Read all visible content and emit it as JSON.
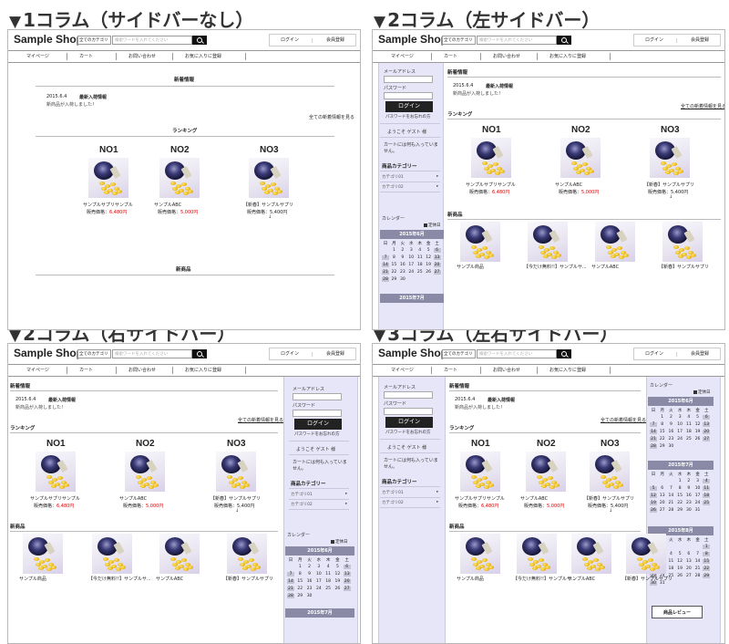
{
  "headings": {
    "p1": "1コラム（サイドバーなし）",
    "p2": "2コラム（左サイドバー）",
    "p3": "2コラム（右サイドバー）",
    "p4": "3コラム（左右サイドバー）",
    "tri": "▼"
  },
  "header": {
    "logo": "Sample Shop",
    "category_select": "全てのカテゴリ",
    "search_placeholder": "検索ワードを入れてください",
    "login": "ログイン",
    "separator": "|",
    "register": "会員登録"
  },
  "nav": [
    "マイページ",
    "カート",
    "お問い合わせ",
    "お気に入りに登録"
  ],
  "news": {
    "title": "新着情報",
    "date": "2015.6.4",
    "headline": "最新入荷情報",
    "body": "新商品が入荷しました！",
    "more": "全ての新着情報を見る"
  },
  "ranking": {
    "title": "ランキング",
    "items": [
      {
        "rank": "NO1",
        "name": "サンプルサプリサンプル",
        "price_label": "販売価格：",
        "price": "6,480円"
      },
      {
        "rank": "NO2",
        "name": "サンプルABC",
        "price_label": "販売価格：",
        "price": "5,000円"
      },
      {
        "rank": "NO3",
        "name": "【新春】サンプルサプリ",
        "price_label": "販売価格：",
        "price": "5,400円"
      }
    ],
    "mark": "↓"
  },
  "new_products": {
    "title": "新商品",
    "items": [
      "サンプル商品",
      "【今だけ無料!!】サンプルサ...",
      "サンプルABC",
      "【新春】サンプルサプリ"
    ]
  },
  "sidebar": {
    "mail_label": "メールアドレス",
    "password_label": "パスワード",
    "login_button": "ログイン",
    "forgot": "パスワードをお忘れの方",
    "welcome": "ようこそ ゲスト 様",
    "cart_line1": "カートには何も入っていま",
    "cart_line2": "せん。",
    "category_title": "商品カテゴリー",
    "categories": [
      "カテゴリ01",
      "カテゴリ02"
    ],
    "arrow": "▸",
    "calendar_title": "カレンダー",
    "legend": "定休日",
    "review_button": "商品レビュー"
  },
  "calendar": {
    "months": [
      "2015年6月",
      "2015年7月",
      "2015年8月"
    ],
    "weekdays": [
      "日",
      "月",
      "火",
      "水",
      "木",
      "金",
      "土"
    ],
    "june_rows": [
      [
        "",
        "1",
        "2",
        "3",
        "4",
        "5",
        "6"
      ],
      [
        "7",
        "8",
        "9",
        "10",
        "11",
        "12",
        "13"
      ],
      [
        "14",
        "15",
        "16",
        "17",
        "18",
        "19",
        "20"
      ],
      [
        "21",
        "22",
        "23",
        "24",
        "25",
        "26",
        "27"
      ],
      [
        "28",
        "29",
        "30",
        "",
        "",
        "",
        ""
      ]
    ],
    "july_rows": [
      [
        "",
        "",
        "",
        "1",
        "2",
        "3",
        "4"
      ],
      [
        "5",
        "6",
        "7",
        "8",
        "9",
        "10",
        "11"
      ],
      [
        "12",
        "13",
        "14",
        "15",
        "16",
        "17",
        "18"
      ],
      [
        "19",
        "20",
        "21",
        "22",
        "23",
        "24",
        "25"
      ],
      [
        "26",
        "27",
        "28",
        "29",
        "30",
        "31",
        ""
      ]
    ],
    "aug_rows": [
      [
        "",
        "",
        "",
        "",
        "",
        "",
        "1"
      ],
      [
        "2",
        "3",
        "4",
        "5",
        "6",
        "7",
        "8"
      ],
      [
        "9",
        "10",
        "11",
        "12",
        "13",
        "14",
        "15"
      ],
      [
        "16",
        "17",
        "18",
        "19",
        "20",
        "21",
        "22"
      ],
      [
        "23",
        "24",
        "25",
        "26",
        "27",
        "28",
        "29"
      ],
      [
        "30",
        "31",
        "",
        "",
        "",
        "",
        ""
      ]
    ]
  },
  "colors": {
    "sidebar_bg": "#e6e6f8",
    "calendar_head": "#8a8aa6",
    "price_red": "#e00000"
  }
}
